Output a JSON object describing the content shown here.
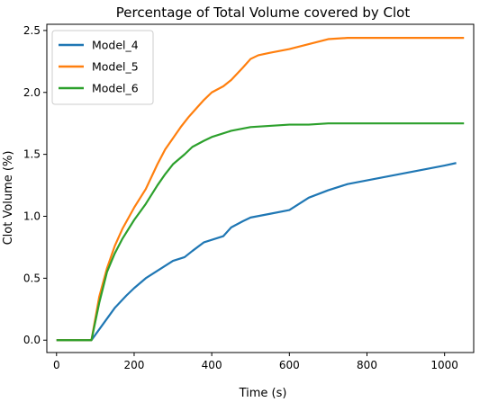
{
  "chart_data": {
    "type": "line",
    "title": "Percentage of Total Volume covered by Clot",
    "xlabel": "Time (s)",
    "ylabel": "Clot Volume (%)",
    "xlim": [
      -25,
      1075
    ],
    "ylim": [
      -0.1,
      2.55
    ],
    "xticks": [
      0,
      200,
      400,
      600,
      800,
      1000
    ],
    "yticks": [
      0.0,
      0.5,
      1.0,
      1.5,
      2.0,
      2.5
    ],
    "xtick_labels": [
      "0",
      "200",
      "400",
      "600",
      "800",
      "1000"
    ],
    "ytick_labels": [
      "0.0",
      "0.5",
      "1.0",
      "1.5",
      "2.0",
      "2.5"
    ],
    "grid": false,
    "legend_position": "top-left",
    "series": [
      {
        "name": "Model_4",
        "color": "#1f77b4",
        "x": [
          0,
          85,
          90,
          120,
          150,
          180,
          200,
          230,
          260,
          280,
          300,
          330,
          350,
          380,
          400,
          430,
          450,
          480,
          500,
          550,
          600,
          630,
          650,
          700,
          750,
          800,
          850,
          900,
          950,
          1000,
          1030
        ],
        "y": [
          0.0,
          0.0,
          0.0,
          0.13,
          0.26,
          0.36,
          0.42,
          0.5,
          0.56,
          0.6,
          0.64,
          0.67,
          0.72,
          0.79,
          0.81,
          0.84,
          0.91,
          0.96,
          0.99,
          1.02,
          1.05,
          1.11,
          1.15,
          1.21,
          1.26,
          1.29,
          1.32,
          1.35,
          1.38,
          1.41,
          1.43
        ]
      },
      {
        "name": "Model_5",
        "color": "#ff7f0e",
        "x": [
          0,
          85,
          90,
          110,
          130,
          150,
          170,
          200,
          230,
          260,
          280,
          300,
          320,
          340,
          360,
          380,
          400,
          430,
          450,
          480,
          500,
          520,
          550,
          600,
          650,
          700,
          750,
          800,
          900,
          1000,
          1050
        ],
        "y": [
          0.0,
          0.0,
          0.0,
          0.35,
          0.58,
          0.76,
          0.9,
          1.07,
          1.22,
          1.42,
          1.54,
          1.63,
          1.72,
          1.8,
          1.87,
          1.94,
          2.0,
          2.05,
          2.1,
          2.2,
          2.27,
          2.3,
          2.32,
          2.35,
          2.39,
          2.43,
          2.44,
          2.44,
          2.44,
          2.44,
          2.44
        ]
      },
      {
        "name": "Model_6",
        "color": "#2ca02c",
        "x": [
          0,
          85,
          90,
          110,
          130,
          150,
          170,
          200,
          230,
          260,
          280,
          300,
          330,
          350,
          380,
          400,
          450,
          500,
          550,
          600,
          650,
          700,
          800,
          900,
          1000,
          1050
        ],
        "y": [
          0.0,
          0.0,
          0.0,
          0.3,
          0.55,
          0.7,
          0.82,
          0.97,
          1.1,
          1.25,
          1.34,
          1.42,
          1.5,
          1.56,
          1.61,
          1.64,
          1.69,
          1.72,
          1.73,
          1.74,
          1.74,
          1.75,
          1.75,
          1.75,
          1.75,
          1.75
        ]
      }
    ]
  }
}
